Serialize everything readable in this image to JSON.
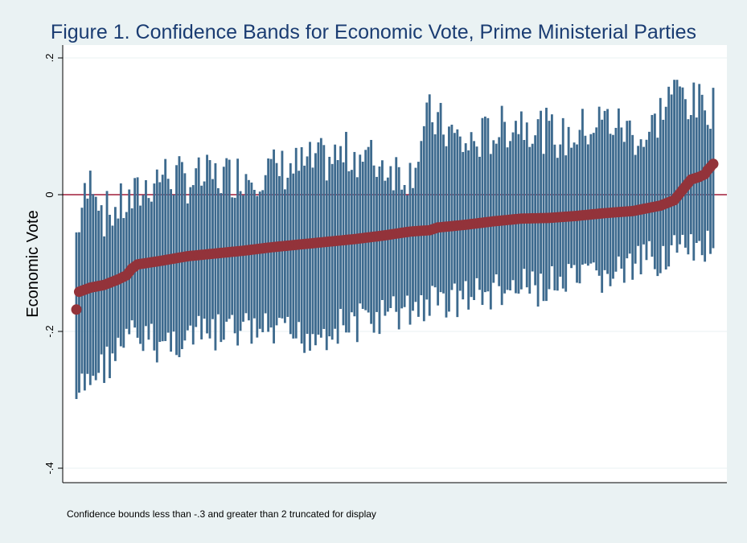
{
  "chart_data": {
    "type": "scatter",
    "title": "Figure 1. Confidence Bands for Economic Vote, Prime Ministerial Parties",
    "ylabel": "Economic Vote",
    "xlabel": "",
    "ylim": [
      -0.4,
      0.2
    ],
    "y_ticks": [
      {
        "value": 0.2,
        "label": ".2"
      },
      {
        "value": 0,
        "label": "0"
      },
      {
        "value": -0.2,
        "label": "-.2"
      },
      {
        "value": -0.4,
        "label": "-.4"
      }
    ],
    "grid": true,
    "reference_line": {
      "value": 0,
      "color": "#a11d3a"
    },
    "n_points": 230,
    "point_estimate_anchors": [
      [
        0,
        -0.168
      ],
      [
        1,
        -0.142
      ],
      [
        5,
        -0.136
      ],
      [
        10,
        -0.132
      ],
      [
        15,
        -0.124
      ],
      [
        18,
        -0.118
      ],
      [
        20,
        -0.108
      ],
      [
        22,
        -0.102
      ],
      [
        30,
        -0.097
      ],
      [
        40,
        -0.09
      ],
      [
        50,
        -0.086
      ],
      [
        60,
        -0.082
      ],
      [
        70,
        -0.077
      ],
      [
        80,
        -0.073
      ],
      [
        90,
        -0.069
      ],
      [
        100,
        -0.065
      ],
      [
        110,
        -0.06
      ],
      [
        120,
        -0.054
      ],
      [
        127,
        -0.052
      ],
      [
        130,
        -0.048
      ],
      [
        140,
        -0.044
      ],
      [
        150,
        -0.039
      ],
      [
        160,
        -0.035
      ],
      [
        170,
        -0.034
      ],
      [
        180,
        -0.031
      ],
      [
        190,
        -0.027
      ],
      [
        200,
        -0.024
      ],
      [
        210,
        -0.016
      ],
      [
        215,
        -0.008
      ],
      [
        217,
        0.002
      ],
      [
        219,
        0.012
      ],
      [
        221,
        0.022
      ],
      [
        224,
        0.026
      ],
      [
        226,
        0.03
      ],
      [
        227,
        0.036
      ],
      [
        229,
        0.045
      ]
    ],
    "bands": {
      "upper_anchors": [
        [
          0,
          -0.065
        ],
        [
          2,
          -0.03
        ],
        [
          4,
          -0.01
        ],
        [
          6,
          0.02
        ],
        [
          10,
          -0.04
        ],
        [
          20,
          -0.02
        ],
        [
          30,
          0.02
        ],
        [
          40,
          0.01
        ],
        [
          60,
          0.02
        ],
        [
          80,
          0.03
        ],
        [
          100,
          0.05
        ],
        [
          120,
          0.02
        ],
        [
          127,
          0.105
        ],
        [
          140,
          0.06
        ],
        [
          160,
          0.1
        ],
        [
          175,
          0.07
        ],
        [
          190,
          0.1
        ],
        [
          205,
          0.07
        ],
        [
          215,
          0.15
        ],
        [
          222,
          0.12
        ],
        [
          229,
          0.12
        ]
      ],
      "lower_anchors": [
        [
          0,
          -0.29
        ],
        [
          5,
          -0.26
        ],
        [
          10,
          -0.24
        ],
        [
          20,
          -0.2
        ],
        [
          30,
          -0.21
        ],
        [
          40,
          -0.2
        ],
        [
          60,
          -0.19
        ],
        [
          80,
          -0.2
        ],
        [
          100,
          -0.18
        ],
        [
          120,
          -0.16
        ],
        [
          127,
          -0.15
        ],
        [
          140,
          -0.14
        ],
        [
          160,
          -0.13
        ],
        [
          180,
          -0.12
        ],
        [
          200,
          -0.1
        ],
        [
          215,
          -0.07
        ],
        [
          222,
          -0.08
        ],
        [
          229,
          -0.06
        ]
      ],
      "truncate_low": -0.3,
      "note": "Confidence bounds less than -.3 and greater than 2 truncated for display"
    },
    "colors": {
      "bands": "#3d6a8e",
      "points": "#93333a",
      "reference_line": "#a11d3a",
      "grid": "#eaf2f3",
      "plot_bg": "#ffffff",
      "title": "#1a3c72"
    }
  },
  "footnote": "Confidence bounds less than -.3 and greater than 2 truncated for display"
}
